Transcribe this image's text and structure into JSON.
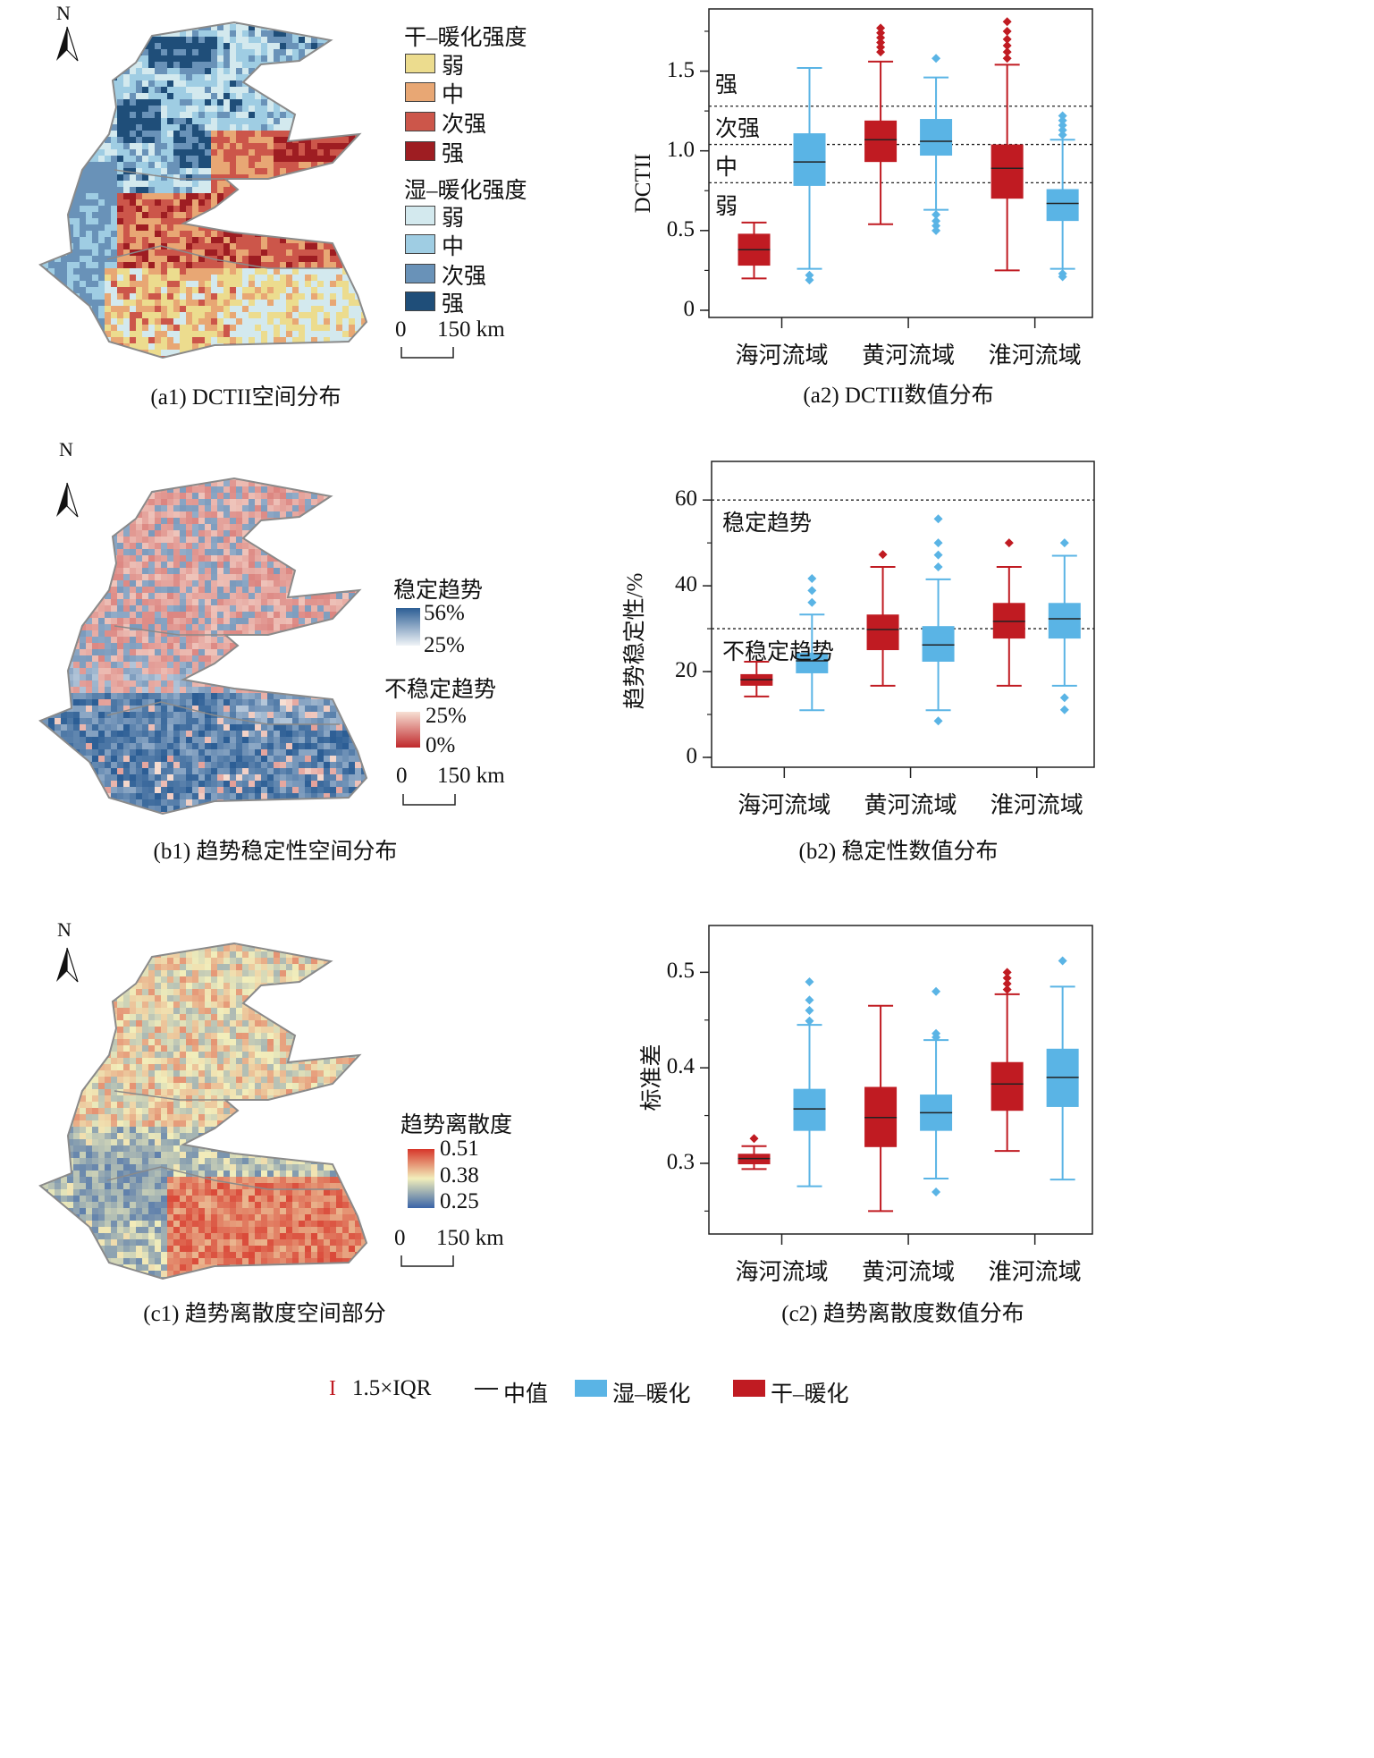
{
  "colors": {
    "wet": "#5ab4e5",
    "dry": "#c01b22",
    "median": "#222222",
    "boundary": "#8a8a8a"
  },
  "north_label": "N",
  "scale_bar": {
    "zero": "0",
    "label": "150 km"
  },
  "panels": {
    "a1": {
      "caption": "(a1) DCTII空间分布",
      "legend": {
        "dry_title": "干–暖化强度",
        "dry_items": [
          "弱",
          "中",
          "次强",
          "强"
        ],
        "dry_colors": [
          "#ecdc8e",
          "#e8a774",
          "#cc564a",
          "#9e1d22"
        ],
        "wet_title": "湿–暖化强度",
        "wet_items": [
          "弱",
          "中",
          "次强",
          "强"
        ],
        "wet_colors": [
          "#d3e9ee",
          "#9fcde3",
          "#6992b8",
          "#1f4e79"
        ]
      }
    },
    "b1": {
      "caption": "(b1) 趋势稳定性空间分布",
      "legend": {
        "stable_title": "稳定趋势",
        "stable_max": "56%",
        "stable_min": "25%",
        "stable_colors": [
          "#2c5e95",
          "#f0f4f7"
        ],
        "unstable_title": "不稳定趋势",
        "unstable_max": "25%",
        "unstable_min": "0%",
        "unstable_colors": [
          "#f7e0d4",
          "#c0292c"
        ]
      }
    },
    "c1": {
      "caption": "(c1) 趋势离散度空间部分",
      "legend": {
        "title": "趋势离散度",
        "ticks": [
          "0.51",
          "0.38",
          "0.25"
        ],
        "colors": [
          "#d7362a",
          "#f2eebb",
          "#3a64a8"
        ]
      }
    }
  },
  "chart_data": [
    {
      "id": "a2",
      "type": "box",
      "title": "(a2) DCTII数值分布",
      "xlabel": "",
      "ylabel": "DCTII",
      "categories": [
        "海河流域",
        "黄河流域",
        "淮河流域"
      ],
      "ylim": [
        -0.045,
        1.89
      ],
      "yticks": [
        0,
        0.5,
        1.0,
        1.5
      ],
      "ytick_labels": [
        "0",
        "0.5",
        "1.0",
        "1.5"
      ],
      "minor_step": 0.25,
      "reference_lines": [
        1.28,
        1.04,
        0.8
      ],
      "zone_labels": [
        "强",
        "次强",
        "中",
        "弱"
      ],
      "series": [
        {
          "name": "干–暖化",
          "boxes": [
            {
              "low": 0.2,
              "q1": 0.28,
              "median": 0.38,
              "q3": 0.48,
              "high": 0.55,
              "outliers": []
            },
            {
              "low": 0.54,
              "q1": 0.93,
              "median": 1.07,
              "q3": 1.19,
              "high": 1.56,
              "outliers": [
                1.62,
                1.65,
                1.68,
                1.71,
                1.74,
                1.77
              ]
            },
            {
              "low": 0.25,
              "q1": 0.7,
              "median": 0.89,
              "q3": 1.04,
              "high": 1.54,
              "outliers": [
                1.58,
                1.62,
                1.66,
                1.7,
                1.75,
                1.81
              ]
            }
          ]
        },
        {
          "name": "湿–暖化",
          "boxes": [
            {
              "low": 0.26,
              "q1": 0.78,
              "median": 0.93,
              "q3": 1.11,
              "high": 1.52,
              "outliers": [
                0.22,
                0.19
              ]
            },
            {
              "low": 0.63,
              "q1": 0.97,
              "median": 1.06,
              "q3": 1.2,
              "high": 1.46,
              "outliers": [
                1.58,
                0.6,
                0.56,
                0.53,
                0.5
              ]
            },
            {
              "low": 0.26,
              "q1": 0.56,
              "median": 0.67,
              "q3": 0.76,
              "high": 1.07,
              "outliers": [
                1.1,
                1.13,
                1.16,
                1.19,
                1.22,
                0.23,
                0.21
              ]
            }
          ]
        }
      ]
    },
    {
      "id": "b2",
      "type": "box",
      "title": "(b2) 稳定性数值分布",
      "xlabel": "",
      "ylabel": "趋势稳定性/%",
      "categories": [
        "海河流域",
        "黄河流域",
        "淮河流域"
      ],
      "ylim": [
        -2.3,
        69
      ],
      "yticks": [
        0,
        20,
        40,
        60
      ],
      "ytick_labels": [
        "0",
        "20",
        "40",
        "60"
      ],
      "minor_step": 10,
      "reference_lines": [
        60,
        30
      ],
      "zone_labels": [
        "稳定趋势",
        "不稳定趋势"
      ],
      "series": [
        {
          "name": "干–暖化",
          "boxes": [
            {
              "low": 14.2,
              "q1": 16.7,
              "median": 18.1,
              "q3": 19.4,
              "high": 22.3,
              "outliers": []
            },
            {
              "low": 16.7,
              "q1": 25.0,
              "median": 29.8,
              "q3": 33.3,
              "high": 44.4,
              "outliers": [
                47.3
              ]
            },
            {
              "low": 16.7,
              "q1": 27.7,
              "median": 31.7,
              "q3": 36.0,
              "high": 44.4,
              "outliers": [
                50.0
              ]
            }
          ]
        },
        {
          "name": "湿–暖化",
          "boxes": [
            {
              "low": 11.0,
              "q1": 19.6,
              "median": 22.5,
              "q3": 24.4,
              "high": 33.3,
              "outliers": [
                36.1,
                38.9,
                41.7
              ]
            },
            {
              "low": 11.0,
              "q1": 22.3,
              "median": 26.2,
              "q3": 30.6,
              "high": 41.5,
              "outliers": [
                44.4,
                47.2,
                50.0,
                55.6,
                8.5
              ]
            },
            {
              "low": 16.7,
              "q1": 27.7,
              "median": 32.3,
              "q3": 36.0,
              "high": 47.0,
              "outliers": [
                50.0,
                13.9,
                11.1
              ]
            }
          ]
        }
      ]
    },
    {
      "id": "c2",
      "type": "box",
      "title": "(c2) 趋势离散度数值分布",
      "xlabel": "",
      "ylabel": "标准差",
      "categories": [
        "海河流域",
        "黄河流域",
        "淮河流域"
      ],
      "ylim": [
        0.226,
        0.549
      ],
      "yticks": [
        0.3,
        0.4,
        0.5
      ],
      "ytick_labels": [
        "0.3",
        "0.4",
        "0.5"
      ],
      "minor_step": 0.05,
      "reference_lines": [],
      "zone_labels": [],
      "series": [
        {
          "name": "干–暖化",
          "boxes": [
            {
              "low": 0.294,
              "q1": 0.299,
              "median": 0.305,
              "q3": 0.31,
              "high": 0.318,
              "outliers": [
                0.326
              ]
            },
            {
              "low": 0.25,
              "q1": 0.317,
              "median": 0.348,
              "q3": 0.38,
              "high": 0.465,
              "outliers": []
            },
            {
              "low": 0.313,
              "q1": 0.355,
              "median": 0.383,
              "q3": 0.406,
              "high": 0.477,
              "outliers": [
                0.482,
                0.488,
                0.494,
                0.5
              ]
            }
          ]
        },
        {
          "name": "湿–暖化",
          "boxes": [
            {
              "low": 0.276,
              "q1": 0.334,
              "median": 0.357,
              "q3": 0.378,
              "high": 0.445,
              "outliers": [
                0.449,
                0.46,
                0.471,
                0.49
              ]
            },
            {
              "low": 0.284,
              "q1": 0.334,
              "median": 0.353,
              "q3": 0.372,
              "high": 0.429,
              "outliers": [
                0.432,
                0.436,
                0.48,
                0.27
              ]
            },
            {
              "low": 0.283,
              "q1": 0.359,
              "median": 0.39,
              "q3": 0.42,
              "high": 0.485,
              "outliers": [
                0.512
              ]
            }
          ]
        }
      ]
    }
  ],
  "legend": {
    "iqr": "1.5×IQR",
    "median": "中值",
    "wet": "湿–暖化",
    "dry": "干–暖化"
  }
}
